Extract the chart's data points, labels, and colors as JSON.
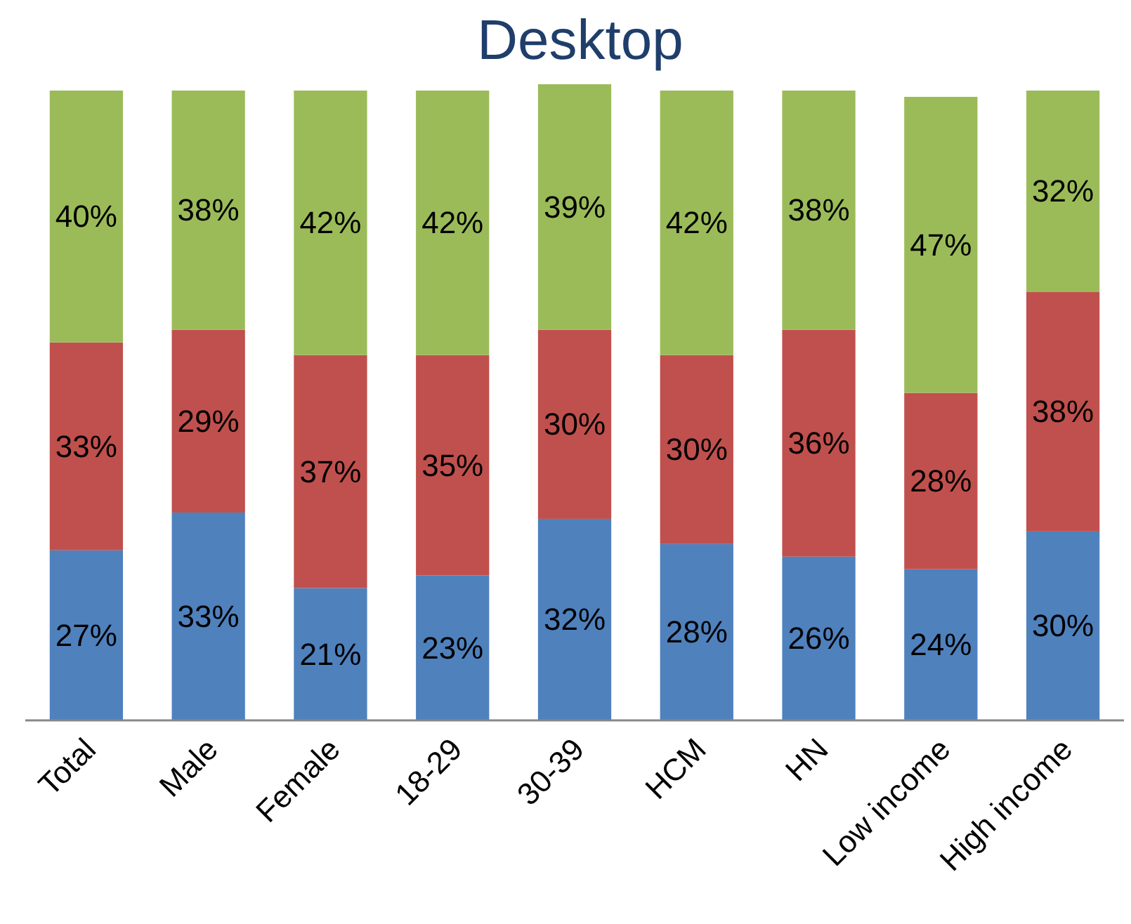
{
  "chart_data": {
    "type": "bar",
    "title": "Desktop",
    "stacked": true,
    "categories": [
      "Total",
      "Male",
      "Female",
      "18-29",
      "30-39",
      "HCM",
      "HN",
      "Low income",
      "High income"
    ],
    "series": [
      {
        "color": "#4f81bd",
        "values": [
          27,
          33,
          21,
          23,
          32,
          28,
          26,
          24,
          30
        ],
        "value_labels": [
          "27%",
          "33%",
          "21%",
          "23%",
          "32%",
          "28%",
          "26%",
          "24%",
          "30%"
        ]
      },
      {
        "color": "#c0504d",
        "values": [
          33,
          29,
          37,
          35,
          30,
          30,
          36,
          28,
          38
        ],
        "value_labels": [
          "33%",
          "29%",
          "37%",
          "35%",
          "30%",
          "30%",
          "36%",
          "28%",
          "38%"
        ]
      },
      {
        "color": "#9bbb59",
        "values": [
          40,
          38,
          42,
          42,
          39,
          42,
          38,
          47,
          32
        ],
        "value_labels": [
          "40%",
          "38%",
          "42%",
          "42%",
          "39%",
          "42%",
          "38%",
          "47%",
          "32%"
        ]
      }
    ]
  }
}
